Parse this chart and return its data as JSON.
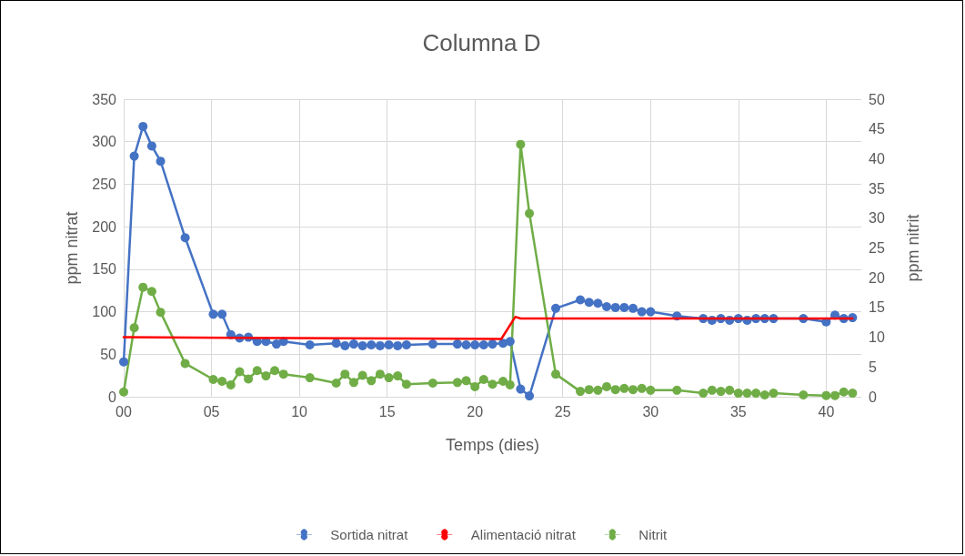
{
  "chart_data": {
    "type": "line",
    "title": "Columna D",
    "xlabel": "Temps (dies)",
    "ylabel": "ppm nitrat",
    "y2label": "ppm nitrit",
    "xlim": [
      0,
      42
    ],
    "xticks": [
      {
        "value": 0,
        "label": "00"
      },
      {
        "value": 5,
        "label": "05"
      },
      10,
      15,
      20,
      25,
      30,
      35,
      40
    ],
    "ylim": [
      0,
      350
    ],
    "yticks": [
      0,
      50,
      100,
      150,
      200,
      250,
      300,
      350
    ],
    "y2lim": [
      0,
      50
    ],
    "y2ticks": [
      0,
      5,
      10,
      15,
      20,
      25,
      30,
      35,
      40,
      45,
      50
    ],
    "grid": true,
    "legend": "bottom",
    "marker": "circle",
    "line_style": "solid",
    "series": [
      {
        "name": "Sortida nitrat",
        "color": "#4472c4",
        "x": [
          0,
          0.6,
          1.1,
          1.6,
          2.1,
          3.5,
          5.1,
          5.6,
          6.1,
          6.6,
          7.1,
          7.6,
          8.1,
          8.7,
          9.1,
          10.6,
          12.1,
          12.6,
          13.1,
          13.6,
          14.1,
          14.6,
          15.1,
          15.6,
          16.1,
          17.6,
          19.0,
          19.5,
          20,
          20.5,
          21,
          21.6,
          22.0,
          22.6,
          23.1,
          24.6,
          26,
          26.5,
          27,
          27.5,
          28,
          28.5,
          29,
          29.5,
          30,
          31.5,
          33,
          33.5,
          34,
          34.5,
          35,
          35.5,
          36,
          36.5,
          37,
          38.7,
          40,
          40.5,
          41,
          41.5
        ],
        "values": [
          41,
          283,
          318,
          295,
          277,
          187,
          97,
          97,
          73,
          69,
          70,
          65,
          65,
          62,
          65,
          61,
          63,
          60,
          62,
          60,
          61,
          60,
          61,
          60,
          61,
          62,
          62,
          61,
          61,
          61,
          62,
          63,
          65,
          9,
          1,
          104,
          114,
          111,
          110,
          106,
          105,
          105,
          104,
          100,
          100,
          95,
          92,
          90,
          92,
          90,
          92,
          90,
          92,
          92,
          92,
          92,
          88,
          96,
          92,
          93
        ]
      },
      {
        "name": "Alimentació nitrat",
        "color": "#ff0000",
        "marker": "none",
        "x": [
          0,
          21.5,
          22.3,
          22.6,
          41.5
        ],
        "values": [
          70,
          68,
          94,
          92,
          92
        ]
      },
      {
        "name": "Nitrit",
        "color": "#70ad47",
        "axis": "y2",
        "x": [
          0,
          0.6,
          1.1,
          1.6,
          2.1,
          3.5,
          5.1,
          5.6,
          6.1,
          6.6,
          7.1,
          7.6,
          8.1,
          8.6,
          9.1,
          10.6,
          12.1,
          12.6,
          13.1,
          13.6,
          14.1,
          14.6,
          15.1,
          15.6,
          16.1,
          17.6,
          19.0,
          19.5,
          20,
          20.5,
          21,
          21.6,
          22.0,
          22.6,
          23.1,
          24.6,
          26,
          26.5,
          27,
          27.5,
          28,
          28.5,
          29,
          29.5,
          30,
          31.5,
          33,
          33.5,
          34,
          34.5,
          35,
          35.5,
          36,
          36.5,
          37,
          38.7,
          40,
          40.5,
          41,
          41.5
        ],
        "values": [
          0.8,
          11.6,
          18.4,
          17.7,
          14.2,
          5.6,
          2.9,
          2.6,
          2.0,
          4.2,
          3.0,
          4.4,
          3.5,
          4.4,
          3.8,
          3.2,
          2.3,
          3.8,
          2.4,
          3.6,
          2.7,
          3.8,
          3.2,
          3.5,
          2.1,
          2.3,
          2.4,
          2.7,
          1.7,
          2.9,
          2.1,
          2.6,
          2.0,
          42.4,
          30.8,
          3.8,
          0.9,
          1.2,
          1.1,
          1.7,
          1.2,
          1.4,
          1.2,
          1.4,
          1.1,
          1.1,
          0.6,
          1.1,
          0.9,
          1.1,
          0.6,
          0.6,
          0.6,
          0.3,
          0.6,
          0.3,
          0.2,
          0.2,
          0.8,
          0.6
        ]
      }
    ]
  }
}
